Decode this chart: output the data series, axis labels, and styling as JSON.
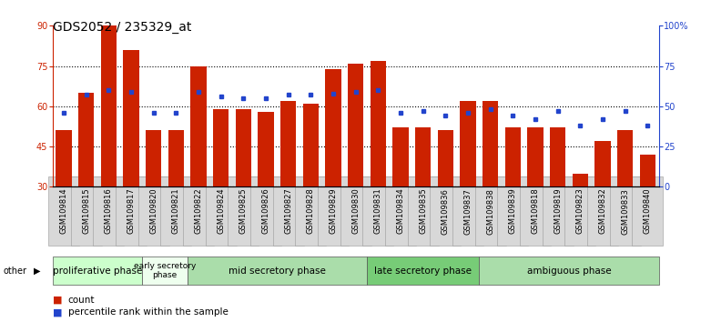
{
  "title": "GDS2052 / 235329_at",
  "samples": [
    "GSM109814",
    "GSM109815",
    "GSM109816",
    "GSM109817",
    "GSM109820",
    "GSM109821",
    "GSM109822",
    "GSM109824",
    "GSM109825",
    "GSM109826",
    "GSM109827",
    "GSM109828",
    "GSM109829",
    "GSM109830",
    "GSM109831",
    "GSM109834",
    "GSM109835",
    "GSM109836",
    "GSM109837",
    "GSM109838",
    "GSM109839",
    "GSM109818",
    "GSM109819",
    "GSM109823",
    "GSM109832",
    "GSM109833",
    "GSM109840"
  ],
  "counts": [
    51,
    65,
    90,
    81,
    51,
    51,
    75,
    59,
    59,
    58,
    62,
    61,
    74,
    76,
    77,
    52,
    52,
    51,
    62,
    62,
    52,
    52,
    52,
    35,
    47,
    51,
    42
  ],
  "percentiles": [
    46,
    57,
    60,
    59,
    46,
    46,
    59,
    56,
    55,
    55,
    57,
    57,
    58,
    59,
    60,
    46,
    47,
    44,
    46,
    48,
    44,
    42,
    47,
    38,
    42,
    47,
    38
  ],
  "phase_data": [
    {
      "label": "proliferative phase",
      "start": 0,
      "end": 3,
      "color": "#ccffcc"
    },
    {
      "label": "early secretory\nphase",
      "start": 4,
      "end": 5,
      "color": "#eeffee"
    },
    {
      "label": "mid secretory phase",
      "start": 6,
      "end": 13,
      "color": "#aaddaa"
    },
    {
      "label": "late secretory phase",
      "start": 14,
      "end": 18,
      "color": "#77cc77"
    },
    {
      "label": "ambiguous phase",
      "start": 19,
      "end": 26,
      "color": "#aaddaa"
    }
  ],
  "ylim_left": [
    30,
    90
  ],
  "ylim_right": [
    0,
    100
  ],
  "yticks_left": [
    30,
    45,
    60,
    75,
    90
  ],
  "yticks_right": [
    0,
    25,
    50,
    75,
    100
  ],
  "ytick_labels_right": [
    "0",
    "25",
    "50",
    "75",
    "100%"
  ],
  "bar_color": "#cc2200",
  "marker_color": "#2244cc",
  "legend_count_label": "count",
  "legend_pct_label": "percentile rank within the sample"
}
